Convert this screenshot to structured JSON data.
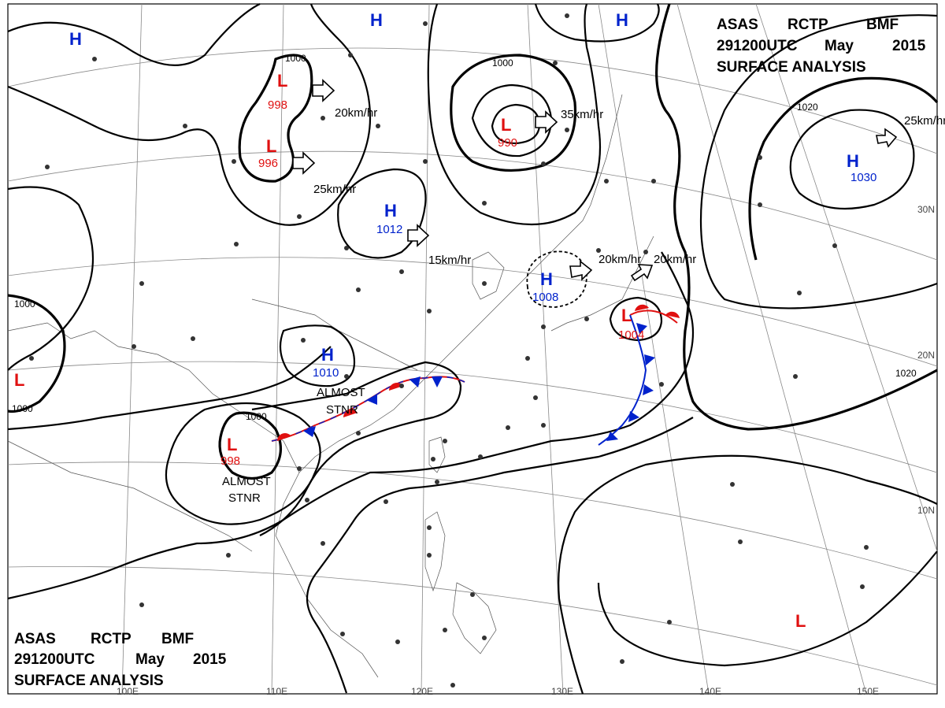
{
  "header": {
    "line1": [
      "ASAS",
      "RCTP",
      "BMF"
    ],
    "line2": [
      "291200UTC",
      "May",
      "2015"
    ],
    "line3": "SURFACE  ANALYSIS"
  },
  "footer": {
    "line1": [
      "ASAS",
      "RCTP",
      "BMF"
    ],
    "line2": [
      "291200UTC",
      "May",
      "2015"
    ],
    "line3": "SURFACE  ANALYSIS"
  },
  "longitude_labels": [
    "100E",
    "110E",
    "120E",
    "130E",
    "140E",
    "150E"
  ],
  "latitude_labels": [
    "30N",
    "20N",
    "10N"
  ],
  "isobar_labels": [
    "1000",
    "1000",
    "1000",
    "1000",
    "1000",
    "1020",
    "1020"
  ],
  "pressure_centers": [
    {
      "type": "H",
      "pressure": ""
    },
    {
      "type": "H",
      "pressure": ""
    },
    {
      "type": "H",
      "pressure": ""
    },
    {
      "type": "L",
      "pressure": "998"
    },
    {
      "type": "L",
      "pressure": "996"
    },
    {
      "type": "L",
      "pressure": "990"
    },
    {
      "type": "H",
      "pressure": "1030"
    },
    {
      "type": "H",
      "pressure": "1012"
    },
    {
      "type": "H",
      "pressure": "1008"
    },
    {
      "type": "H",
      "pressure": "1010"
    },
    {
      "type": "L",
      "pressure": "1004"
    },
    {
      "type": "L",
      "pressure": "998"
    },
    {
      "type": "L",
      "pressure": ""
    },
    {
      "type": "L",
      "pressure": ""
    }
  ],
  "movement_labels": [
    "20km/hr",
    "25km/hr",
    "35km/hr",
    "25km/hr",
    "15km/hr",
    "20km/hr",
    "20km/hr"
  ],
  "front_labels": [
    "ALMOST",
    "STNR",
    "ALMOST",
    "STNR"
  ],
  "colors": {
    "high": "#0022cc",
    "low": "#e01010",
    "warm_front": "#e01010",
    "cold_front": "#0022cc"
  }
}
